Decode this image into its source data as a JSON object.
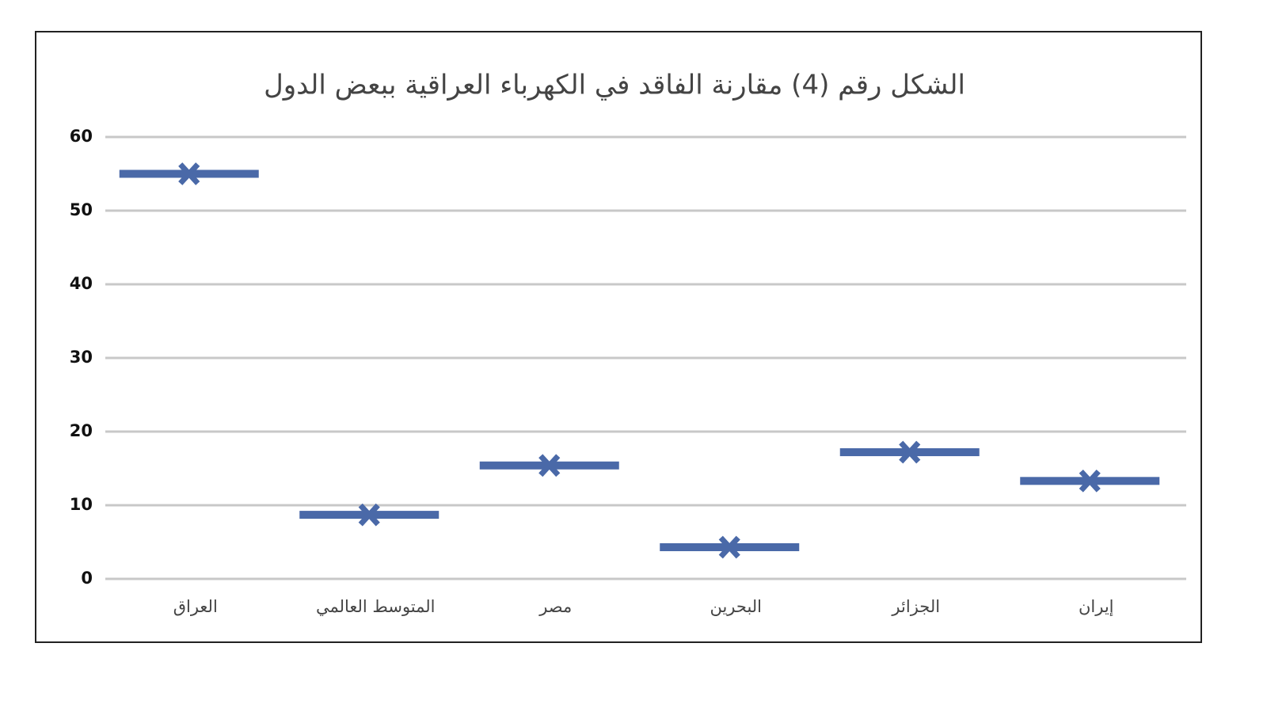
{
  "chart_data": {
    "type": "marker",
    "title": "الشكل رقم (4) مقارنة الفاقد في الكهرباء العراقية ببعض الدول",
    "categories": [
      "العراق",
      "المتوسط العالمي",
      "مصر",
      "البحرين",
      "الجزائر",
      "إيران"
    ],
    "values": [
      55,
      8.7,
      15.4,
      4.3,
      17.2,
      13.3
    ],
    "color": "#4a69a8",
    "ylim": [
      0,
      60
    ],
    "yticks": [
      0,
      10,
      20,
      30,
      40,
      50,
      60
    ],
    "grid": true
  }
}
